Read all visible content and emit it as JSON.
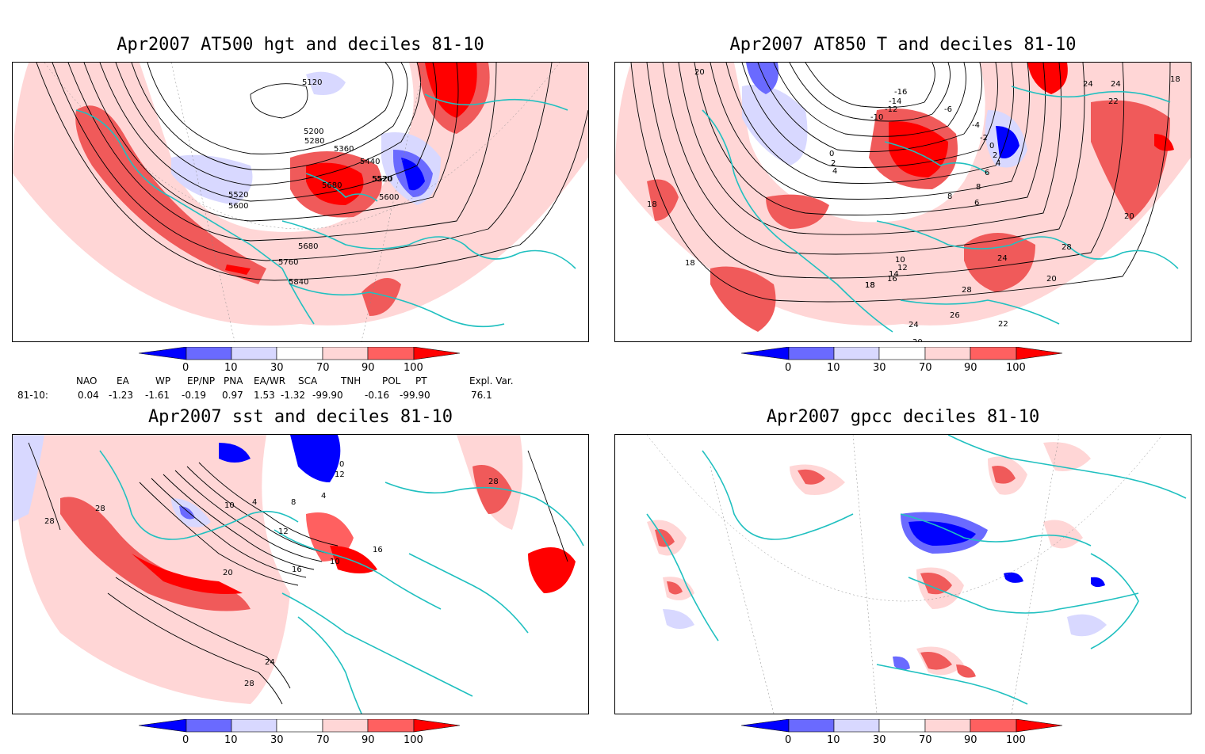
{
  "panels": [
    {
      "title": "Apr2007 AT500 hgt and deciles 81-10",
      "contour_labels": [
        "5120",
        "5200",
        "5280",
        "5360",
        "5440",
        "5520",
        "5600",
        "5520",
        "5600",
        "5680",
        "5520",
        "5680",
        "5760",
        "5840"
      ]
    },
    {
      "title": "Apr2007 AT850 T and deciles 81-10",
      "contour_labels": [
        "20",
        "18",
        "18",
        "18",
        "-16",
        "-14",
        "-12",
        "-10",
        "-6",
        "-4",
        "-2",
        "0",
        "2",
        "4",
        "0",
        "2",
        "4",
        "6",
        "8",
        "10",
        "12",
        "14",
        "16",
        "18",
        "20",
        "24",
        "24",
        "22",
        "28",
        "20",
        "24",
        "26",
        "24",
        "22",
        "28",
        "20",
        "8",
        "6",
        "18"
      ]
    },
    {
      "title": "Apr2007 sst and deciles 81-10",
      "contour_labels": [
        "28",
        "28",
        "20",
        "10",
        "4",
        "8",
        "4",
        "12",
        "16",
        "10",
        "12",
        "16",
        "28",
        "24",
        "28",
        "0"
      ]
    },
    {
      "title": "Apr2007 gpcc deciles 81-10",
      "contour_labels": []
    }
  ],
  "colorbar": {
    "ticks": [
      "0",
      "10",
      "30",
      "70",
      "90",
      "100"
    ],
    "colors": [
      "#0000ff",
      "#6a6aff",
      "#d8d8ff",
      "#ffffff",
      "#ffd6d6",
      "#ff6060",
      "#ff0000"
    ]
  },
  "indices": {
    "headers": [
      "NAO",
      "EA",
      "WP",
      "EP/NP",
      "PNA",
      "EA/WR",
      "SCA",
      "TNH",
      "POL",
      "PT",
      "Expl. Var."
    ],
    "row_label": "81-10:",
    "values": [
      "0.04",
      "-1.23",
      "-1.61",
      "-0.19",
      "0.97",
      "1.53",
      "-1.32",
      "-99.90",
      "-0.16",
      "-99.90",
      "76.1"
    ]
  },
  "colors": {
    "coast": "#20c0c0",
    "light_red": "#ffd6d6",
    "mid_red": "#f05a5a",
    "red": "#ff0000",
    "light_blue": "#d8d8ff",
    "mid_blue": "#6a6aff",
    "blue": "#0000ff"
  }
}
